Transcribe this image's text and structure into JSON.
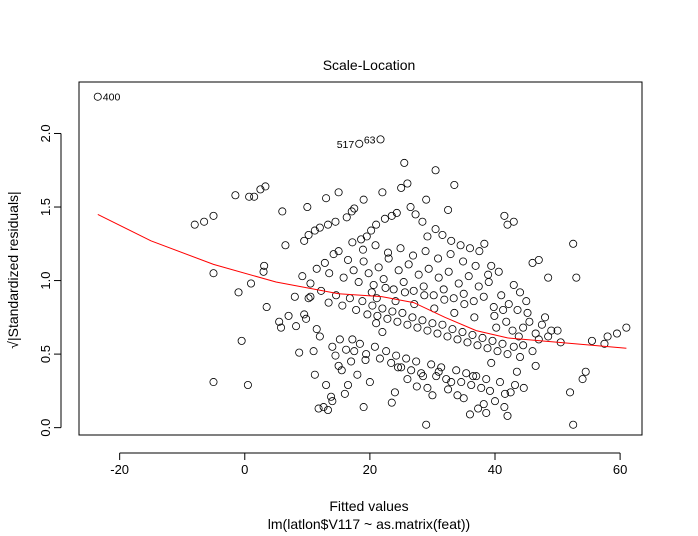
{
  "chart_data": {
    "type": "scatter",
    "title": "Scale-Location",
    "xlabel": "Fitted values",
    "subtitle": "lm(latlon$V117 ~ as.matrix(feat))",
    "ylabel": "√|Standardized residuals|",
    "xlim": [
      -26.5,
      63.5
    ],
    "ylim": [
      -0.05,
      2.35
    ],
    "x_ticks": [
      -20,
      0,
      20,
      40,
      60
    ],
    "y_ticks": [
      0.0,
      0.5,
      1.0,
      1.5,
      2.0
    ],
    "x_tick_labels": [
      "-20",
      "0",
      "20",
      "40",
      "60"
    ],
    "y_tick_labels": [
      "0.0",
      "0.5",
      "1.0",
      "1.5",
      "2.0"
    ],
    "grid": false,
    "point_style": "open-circle",
    "smoother_color": "#ff0000",
    "annotations": [
      {
        "label": "400",
        "x": -23.5,
        "y": 2.25,
        "side": "right"
      },
      {
        "label": "517",
        "x": 18.3,
        "y": 1.93,
        "side": "left"
      },
      {
        "label": "63",
        "x": 21.7,
        "y": 1.96,
        "side": "left"
      }
    ],
    "smoother": [
      {
        "x": -23.5,
        "y": 1.45
      },
      {
        "x": -15,
        "y": 1.27
      },
      {
        "x": -5,
        "y": 1.11
      },
      {
        "x": 5,
        "y": 0.99
      },
      {
        "x": 15,
        "y": 0.91
      },
      {
        "x": 22,
        "y": 0.89
      },
      {
        "x": 27,
        "y": 0.85
      },
      {
        "x": 32,
        "y": 0.75
      },
      {
        "x": 37,
        "y": 0.66
      },
      {
        "x": 42,
        "y": 0.61
      },
      {
        "x": 50,
        "y": 0.58
      },
      {
        "x": 61,
        "y": 0.54
      }
    ],
    "points": [
      {
        "x": -23.5,
        "y": 2.25
      },
      {
        "x": 18.3,
        "y": 1.93
      },
      {
        "x": 21.7,
        "y": 1.96
      },
      {
        "x": -8,
        "y": 1.38
      },
      {
        "x": -6.5,
        "y": 1.4
      },
      {
        "x": -5,
        "y": 1.44
      },
      {
        "x": -1.5,
        "y": 1.58
      },
      {
        "x": 0.7,
        "y": 1.57
      },
      {
        "x": 1.5,
        "y": 1.57
      },
      {
        "x": 2.5,
        "y": 1.62
      },
      {
        "x": 3.3,
        "y": 1.64
      },
      {
        "x": 6,
        "y": 1.47
      },
      {
        "x": 10,
        "y": 1.5
      },
      {
        "x": 13,
        "y": 1.56
      },
      {
        "x": 15,
        "y": 1.6
      },
      {
        "x": 19,
        "y": 1.55
      },
      {
        "x": 22,
        "y": 1.6
      },
      {
        "x": 25,
        "y": 1.63
      },
      {
        "x": 25.5,
        "y": 1.8
      },
      {
        "x": 26,
        "y": 1.66
      },
      {
        "x": 29,
        "y": 1.55
      },
      {
        "x": 30.5,
        "y": 1.75
      },
      {
        "x": 33.5,
        "y": 1.65
      },
      {
        "x": 32.5,
        "y": 1.48
      },
      {
        "x": 41.5,
        "y": 1.44
      },
      {
        "x": 42,
        "y": 1.38
      },
      {
        "x": 43,
        "y": 1.4
      },
      {
        "x": 46,
        "y": 1.12
      },
      {
        "x": 47,
        "y": 1.14
      },
      {
        "x": 48.5,
        "y": 1.02
      },
      {
        "x": 52.5,
        "y": 1.25
      },
      {
        "x": 53,
        "y": 1.02
      },
      {
        "x": -5,
        "y": 1.05
      },
      {
        "x": -5,
        "y": 0.31
      },
      {
        "x": 0.5,
        "y": 0.29
      },
      {
        "x": -1,
        "y": 0.92
      },
      {
        "x": -0.5,
        "y": 0.59
      },
      {
        "x": 1,
        "y": 0.98
      },
      {
        "x": 3,
        "y": 1.06
      },
      {
        "x": 3.1,
        "y": 1.1
      },
      {
        "x": 3.5,
        "y": 0.82
      },
      {
        "x": 5.5,
        "y": 0.72
      },
      {
        "x": 5.8,
        "y": 0.68
      },
      {
        "x": 6.5,
        "y": 1.24
      },
      {
        "x": 7,
        "y": 0.76
      },
      {
        "x": 8,
        "y": 0.89
      },
      {
        "x": 8.7,
        "y": 0.51
      },
      {
        "x": 8.2,
        "y": 0.69
      },
      {
        "x": 9.5,
        "y": 0.77
      },
      {
        "x": 9.8,
        "y": 0.74
      },
      {
        "x": 10.2,
        "y": 0.88
      },
      {
        "x": 10.5,
        "y": 0.89
      },
      {
        "x": 11,
        "y": 0.52
      },
      {
        "x": 11.2,
        "y": 0.36
      },
      {
        "x": 11.5,
        "y": 0.67
      },
      {
        "x": 12,
        "y": 0.62
      },
      {
        "x": 11.8,
        "y": 0.13
      },
      {
        "x": 12.6,
        "y": 0.14
      },
      {
        "x": 13,
        "y": 0.29
      },
      {
        "x": 13.3,
        "y": 0.12
      },
      {
        "x": 13.8,
        "y": 0.21
      },
      {
        "x": 14,
        "y": 0.18
      },
      {
        "x": 14.5,
        "y": 0.49
      },
      {
        "x": 15,
        "y": 0.42
      },
      {
        "x": 15.5,
        "y": 0.39
      },
      {
        "x": 16,
        "y": 0.23
      },
      {
        "x": 16.5,
        "y": 0.29
      },
      {
        "x": 17.2,
        "y": 0.6
      },
      {
        "x": 17.5,
        "y": 0.52
      },
      {
        "x": 18,
        "y": 0.36
      },
      {
        "x": 19,
        "y": 0.14
      },
      {
        "x": 19.3,
        "y": 0.46
      },
      {
        "x": 20,
        "y": 0.31
      },
      {
        "x": 21,
        "y": 0.71
      },
      {
        "x": 22,
        "y": 0.65
      },
      {
        "x": 23.5,
        "y": 0.17
      },
      {
        "x": 24,
        "y": 0.24
      },
      {
        "x": 24.5,
        "y": 0.41
      },
      {
        "x": 26,
        "y": 0.33
      },
      {
        "x": 27.5,
        "y": 0.28
      },
      {
        "x": 28.5,
        "y": 0.35
      },
      {
        "x": 29,
        "y": 0.02
      },
      {
        "x": 29.2,
        "y": 0.27
      },
      {
        "x": 30,
        "y": 0.22
      },
      {
        "x": 31,
        "y": 0.38
      },
      {
        "x": 32.5,
        "y": 0.26
      },
      {
        "x": 33,
        "y": 0.31
      },
      {
        "x": 34,
        "y": 0.22
      },
      {
        "x": 35,
        "y": 0.2
      },
      {
        "x": 36,
        "y": 0.09
      },
      {
        "x": 36.5,
        "y": 0.35
      },
      {
        "x": 37.3,
        "y": 0.13
      },
      {
        "x": 38.2,
        "y": 0.16
      },
      {
        "x": 38.6,
        "y": 0.1
      },
      {
        "x": 39.4,
        "y": 0.44
      },
      {
        "x": 40,
        "y": 0.18
      },
      {
        "x": 41.5,
        "y": 0.14
      },
      {
        "x": 42,
        "y": 0.08
      },
      {
        "x": 42.5,
        "y": 0.24
      },
      {
        "x": 43.5,
        "y": 0.38
      },
      {
        "x": 44.5,
        "y": 0.56
      },
      {
        "x": 46,
        "y": 0.52
      },
      {
        "x": 47,
        "y": 0.6
      },
      {
        "x": 48,
        "y": 0.75
      },
      {
        "x": 49,
        "y": 0.66
      },
      {
        "x": 50,
        "y": 0.66
      },
      {
        "x": 52,
        "y": 0.24
      },
      {
        "x": 52.5,
        "y": 0.02
      },
      {
        "x": 54,
        "y": 0.33
      },
      {
        "x": 54.5,
        "y": 0.38
      },
      {
        "x": 55.5,
        "y": 0.59
      },
      {
        "x": 57.5,
        "y": 0.57
      },
      {
        "x": 58,
        "y": 0.62
      },
      {
        "x": 59.5,
        "y": 0.64
      },
      {
        "x": 61,
        "y": 0.68
      },
      {
        "x": 9.5,
        "y": 1.27
      },
      {
        "x": 10.2,
        "y": 1.31
      },
      {
        "x": 11.2,
        "y": 1.34
      },
      {
        "x": 12,
        "y": 1.36
      },
      {
        "x": 13.3,
        "y": 1.38
      },
      {
        "x": 14.5,
        "y": 1.4
      },
      {
        "x": 16.3,
        "y": 1.43
      },
      {
        "x": 17.1,
        "y": 1.47
      },
      {
        "x": 17.5,
        "y": 1.49
      },
      {
        "x": 18.6,
        "y": 1.28
      },
      {
        "x": 19.5,
        "y": 1.3
      },
      {
        "x": 20.2,
        "y": 1.34
      },
      {
        "x": 21,
        "y": 1.38
      },
      {
        "x": 22.4,
        "y": 1.42
      },
      {
        "x": 23.5,
        "y": 1.44
      },
      {
        "x": 24.3,
        "y": 1.46
      },
      {
        "x": 26.5,
        "y": 1.5
      },
      {
        "x": 27.3,
        "y": 1.45
      },
      {
        "x": 28.4,
        "y": 1.4
      },
      {
        "x": 29.2,
        "y": 1.3
      },
      {
        "x": 30.5,
        "y": 1.35
      },
      {
        "x": 31.6,
        "y": 1.31
      },
      {
        "x": 33,
        "y": 1.27
      },
      {
        "x": 34.5,
        "y": 1.24
      },
      {
        "x": 36,
        "y": 1.22
      },
      {
        "x": 37.5,
        "y": 1.2
      },
      {
        "x": 38.3,
        "y": 1.25
      },
      {
        "x": 39.4,
        "y": 1.1
      },
      {
        "x": 40.6,
        "y": 1.06
      },
      {
        "x": 43,
        "y": 0.97
      },
      {
        "x": 44,
        "y": 0.92
      },
      {
        "x": 45,
        "y": 0.86
      },
      {
        "x": 9.2,
        "y": 1.03
      },
      {
        "x": 10.5,
        "y": 0.98
      },
      {
        "x": 11.5,
        "y": 1.08
      },
      {
        "x": 12.8,
        "y": 1.12
      },
      {
        "x": 13.5,
        "y": 1.05
      },
      {
        "x": 14.2,
        "y": 1.18
      },
      {
        "x": 15,
        "y": 1.2
      },
      {
        "x": 15.8,
        "y": 1.02
      },
      {
        "x": 16.5,
        "y": 1.14
      },
      {
        "x": 17.4,
        "y": 1.07
      },
      {
        "x": 18.2,
        "y": 0.99
      },
      {
        "x": 19,
        "y": 1.13
      },
      {
        "x": 19.8,
        "y": 1.05
      },
      {
        "x": 20.6,
        "y": 0.97
      },
      {
        "x": 21.4,
        "y": 1.09
      },
      {
        "x": 22.2,
        "y": 1.01
      },
      {
        "x": 23,
        "y": 1.15
      },
      {
        "x": 23.8,
        "y": 0.94
      },
      {
        "x": 24.6,
        "y": 1.07
      },
      {
        "x": 25.4,
        "y": 0.99
      },
      {
        "x": 26.2,
        "y": 1.11
      },
      {
        "x": 27,
        "y": 0.93
      },
      {
        "x": 27.8,
        "y": 1.04
      },
      {
        "x": 28.6,
        "y": 0.96
      },
      {
        "x": 29.4,
        "y": 1.08
      },
      {
        "x": 30.2,
        "y": 0.9
      },
      {
        "x": 31,
        "y": 1.02
      },
      {
        "x": 31.8,
        "y": 0.94
      },
      {
        "x": 32.6,
        "y": 1.06
      },
      {
        "x": 33.4,
        "y": 0.88
      },
      {
        "x": 34.2,
        "y": 0.98
      },
      {
        "x": 35,
        "y": 0.91
      },
      {
        "x": 35.8,
        "y": 1.03
      },
      {
        "x": 36.6,
        "y": 0.86
      },
      {
        "x": 37.4,
        "y": 0.96
      },
      {
        "x": 38.2,
        "y": 0.89
      },
      {
        "x": 39,
        "y": 0.99
      },
      {
        "x": 39.8,
        "y": 0.82
      },
      {
        "x": 41,
        "y": 0.9
      },
      {
        "x": 42.2,
        "y": 0.84
      },
      {
        "x": 43.6,
        "y": 0.8
      },
      {
        "x": 45.2,
        "y": 0.78
      },
      {
        "x": 12.2,
        "y": 0.93
      },
      {
        "x": 13.4,
        "y": 0.85
      },
      {
        "x": 14.6,
        "y": 0.9
      },
      {
        "x": 15.6,
        "y": 0.83
      },
      {
        "x": 16.8,
        "y": 0.88
      },
      {
        "x": 17.8,
        "y": 0.8
      },
      {
        "x": 18.8,
        "y": 0.86
      },
      {
        "x": 19.6,
        "y": 0.77
      },
      {
        "x": 20.4,
        "y": 0.83
      },
      {
        "x": 21.2,
        "y": 0.76
      },
      {
        "x": 22.0,
        "y": 0.81
      },
      {
        "x": 22.8,
        "y": 0.74
      },
      {
        "x": 23.6,
        "y": 0.79
      },
      {
        "x": 24.4,
        "y": 0.72
      },
      {
        "x": 25.2,
        "y": 0.78
      },
      {
        "x": 26.0,
        "y": 0.7
      },
      {
        "x": 26.8,
        "y": 0.75
      },
      {
        "x": 27.6,
        "y": 0.68
      },
      {
        "x": 28.4,
        "y": 0.73
      },
      {
        "x": 29.2,
        "y": 0.66
      },
      {
        "x": 30.0,
        "y": 0.71
      },
      {
        "x": 30.8,
        "y": 0.64
      },
      {
        "x": 31.6,
        "y": 0.7
      },
      {
        "x": 32.4,
        "y": 0.62
      },
      {
        "x": 33.2,
        "y": 0.67
      },
      {
        "x": 34.0,
        "y": 0.6
      },
      {
        "x": 34.8,
        "y": 0.65
      },
      {
        "x": 35.6,
        "y": 0.58
      },
      {
        "x": 36.4,
        "y": 0.63
      },
      {
        "x": 37.2,
        "y": 0.56
      },
      {
        "x": 38.0,
        "y": 0.61
      },
      {
        "x": 38.8,
        "y": 0.54
      },
      {
        "x": 39.6,
        "y": 0.59
      },
      {
        "x": 40.4,
        "y": 0.52
      },
      {
        "x": 41.2,
        "y": 0.57
      },
      {
        "x": 42.0,
        "y": 0.5
      },
      {
        "x": 43.0,
        "y": 0.55
      },
      {
        "x": 44.0,
        "y": 0.48
      },
      {
        "x": 14.0,
        "y": 0.55
      },
      {
        "x": 15.2,
        "y": 0.6
      },
      {
        "x": 16.2,
        "y": 0.53
      },
      {
        "x": 17.0,
        "y": 0.45
      },
      {
        "x": 18.4,
        "y": 0.57
      },
      {
        "x": 19.4,
        "y": 0.5
      },
      {
        "x": 20.8,
        "y": 0.55
      },
      {
        "x": 21.6,
        "y": 0.47
      },
      {
        "x": 22.6,
        "y": 0.52
      },
      {
        "x": 23.4,
        "y": 0.44
      },
      {
        "x": 24.2,
        "y": 0.49
      },
      {
        "x": 25.0,
        "y": 0.41
      },
      {
        "x": 25.8,
        "y": 0.47
      },
      {
        "x": 26.6,
        "y": 0.39
      },
      {
        "x": 27.4,
        "y": 0.45
      },
      {
        "x": 28.2,
        "y": 0.37
      },
      {
        "x": 29.8,
        "y": 0.43
      },
      {
        "x": 30.6,
        "y": 0.35
      },
      {
        "x": 31.4,
        "y": 0.41
      },
      {
        "x": 32.2,
        "y": 0.33
      },
      {
        "x": 33.8,
        "y": 0.39
      },
      {
        "x": 34.6,
        "y": 0.31
      },
      {
        "x": 35.4,
        "y": 0.37
      },
      {
        "x": 36.2,
        "y": 0.29
      },
      {
        "x": 37.0,
        "y": 0.35
      },
      {
        "x": 37.8,
        "y": 0.27
      },
      {
        "x": 38.6,
        "y": 0.33
      },
      {
        "x": 39.2,
        "y": 0.25
      },
      {
        "x": 40.8,
        "y": 0.31
      },
      {
        "x": 41.6,
        "y": 0.23
      },
      {
        "x": 43.2,
        "y": 0.29
      },
      {
        "x": 44.6,
        "y": 0.27
      },
      {
        "x": 46.5,
        "y": 0.42
      },
      {
        "x": 20.3,
        "y": 0.92
      },
      {
        "x": 21.1,
        "y": 0.88
      },
      {
        "x": 22.5,
        "y": 0.95
      },
      {
        "x": 24.1,
        "y": 0.86
      },
      {
        "x": 25.6,
        "y": 0.92
      },
      {
        "x": 27.1,
        "y": 0.84
      },
      {
        "x": 28.7,
        "y": 0.9
      },
      {
        "x": 30.3,
        "y": 0.81
      },
      {
        "x": 31.9,
        "y": 0.87
      },
      {
        "x": 33.5,
        "y": 0.78
      },
      {
        "x": 35.1,
        "y": 0.84
      },
      {
        "x": 36.7,
        "y": 0.75
      },
      {
        "x": 17.2,
        "y": 1.26
      },
      {
        "x": 18.9,
        "y": 1.21
      },
      {
        "x": 20.9,
        "y": 1.24
      },
      {
        "x": 22.9,
        "y": 1.19
      },
      {
        "x": 24.9,
        "y": 1.22
      },
      {
        "x": 26.9,
        "y": 1.17
      },
      {
        "x": 28.9,
        "y": 1.2
      },
      {
        "x": 30.9,
        "y": 1.15
      },
      {
        "x": 32.9,
        "y": 1.18
      },
      {
        "x": 34.9,
        "y": 1.13
      },
      {
        "x": 36.9,
        "y": 1.1
      },
      {
        "x": 38.9,
        "y": 1.04
      },
      {
        "x": 44.5,
        "y": 0.68
      },
      {
        "x": 45.5,
        "y": 0.72
      },
      {
        "x": 46.5,
        "y": 0.64
      },
      {
        "x": 47.5,
        "y": 0.7
      },
      {
        "x": 48.5,
        "y": 0.62
      },
      {
        "x": 50.5,
        "y": 0.58
      },
      {
        "x": 41.8,
        "y": 0.72
      },
      {
        "x": 42.8,
        "y": 0.66
      },
      {
        "x": 43.8,
        "y": 0.62
      },
      {
        "x": 40.2,
        "y": 0.68
      },
      {
        "x": 39.9,
        "y": 0.76
      },
      {
        "x": 41.3,
        "y": 0.8
      }
    ]
  }
}
